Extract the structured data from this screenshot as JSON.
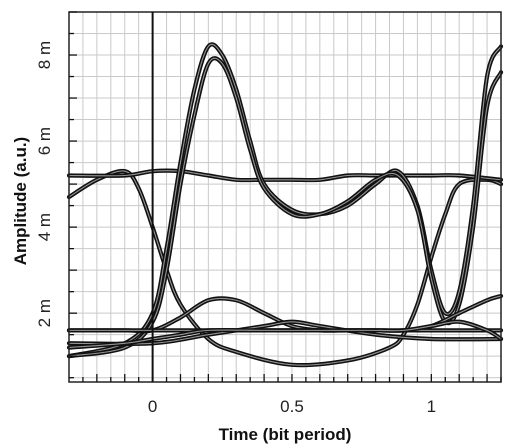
{
  "chart_data": {
    "type": "line",
    "title": "",
    "xlabel": "Time (bit period)",
    "ylabel": "Amplitude (a.u.)",
    "xlim": [
      -0.3,
      1.25
    ],
    "ylim": [
      0.0004,
      0.009
    ],
    "grid": true,
    "x_ticks": [
      {
        "value": 0,
        "label": "0"
      },
      {
        "value": 0.5,
        "label": "0.5"
      },
      {
        "value": 1,
        "label": "1"
      }
    ],
    "y_ticks": [
      {
        "value": 0.002,
        "label": "2 m"
      },
      {
        "value": 0.004,
        "label": "4 m"
      },
      {
        "value": 0.006,
        "label": "6 m"
      },
      {
        "value": 0.008,
        "label": "8 m"
      }
    ],
    "line_color": "#111111",
    "grid_color": "#c9c9c9",
    "series": [
      {
        "x": [
          -0.3,
          -0.2,
          -0.1,
          -0.05,
          0.0,
          0.05,
          0.1,
          0.2,
          0.3,
          0.5,
          0.7,
          0.85,
          0.9,
          0.95,
          1.0,
          1.05,
          1.1,
          1.2,
          1.25
        ],
        "y": [
          0.0047,
          0.0051,
          0.0053,
          0.0049,
          0.004,
          0.003,
          0.0022,
          0.0014,
          0.0011,
          0.0008,
          0.0009,
          0.0012,
          0.0015,
          0.0022,
          0.0033,
          0.0043,
          0.005,
          0.0051,
          0.005
        ]
      },
      {
        "x": [
          -0.3,
          -0.1,
          0.0,
          0.1,
          0.2,
          0.3,
          0.4,
          0.5,
          0.6,
          0.7,
          0.8,
          0.9,
          1.0,
          1.1,
          1.25
        ],
        "y": [
          0.0052,
          0.0052,
          0.0053,
          0.0053,
          0.0052,
          0.0051,
          0.0051,
          0.0051,
          0.0051,
          0.0052,
          0.0052,
          0.0052,
          0.0052,
          0.0052,
          0.0051
        ]
      },
      {
        "x": [
          -0.3,
          -0.1,
          0.0,
          0.05,
          0.1,
          0.15,
          0.2,
          0.25,
          0.3,
          0.35,
          0.4,
          0.5,
          0.6,
          0.7,
          0.8,
          0.88,
          0.95,
          1.0,
          1.05,
          1.1,
          1.15,
          1.2,
          1.25
        ],
        "y": [
          0.001,
          0.0013,
          0.002,
          0.0035,
          0.0055,
          0.0072,
          0.0082,
          0.008,
          0.0072,
          0.006,
          0.005,
          0.0044,
          0.0043,
          0.0045,
          0.005,
          0.0053,
          0.0045,
          0.003,
          0.002,
          0.0025,
          0.0045,
          0.0075,
          0.0082
        ]
      },
      {
        "x": [
          -0.3,
          -0.1,
          0.0,
          0.05,
          0.1,
          0.15,
          0.2,
          0.25,
          0.3,
          0.35,
          0.4,
          0.5,
          0.6,
          0.7,
          0.8,
          0.88,
          0.95,
          1.0,
          1.05,
          1.1,
          1.15,
          1.2,
          1.25
        ],
        "y": [
          0.001,
          0.0012,
          0.0018,
          0.003,
          0.005,
          0.0066,
          0.0078,
          0.0078,
          0.007,
          0.0058,
          0.0049,
          0.0043,
          0.0043,
          0.0046,
          0.0051,
          0.0052,
          0.0044,
          0.0028,
          0.0018,
          0.0022,
          0.004,
          0.0068,
          0.0076
        ]
      },
      {
        "x": [
          -0.3,
          -0.1,
          0.0,
          0.1,
          0.2,
          0.3,
          0.4,
          0.5,
          0.6,
          0.7,
          0.8,
          0.9,
          1.0,
          1.1,
          1.2,
          1.25
        ],
        "y": [
          0.0016,
          0.0016,
          0.0016,
          0.0019,
          0.0023,
          0.0023,
          0.002,
          0.0017,
          0.0016,
          0.0016,
          0.0016,
          0.0016,
          0.0017,
          0.002,
          0.0023,
          0.0024
        ]
      },
      {
        "x": [
          -0.3,
          0.0,
          0.2,
          0.4,
          0.6,
          0.8,
          1.0,
          1.25
        ],
        "y": [
          0.0016,
          0.0016,
          0.0016,
          0.0016,
          0.0016,
          0.0016,
          0.0016,
          0.0016
        ]
      },
      {
        "x": [
          -0.3,
          0.0,
          0.2,
          0.4,
          0.5,
          0.6,
          0.8,
          1.0,
          1.25
        ],
        "y": [
          0.0013,
          0.0013,
          0.0015,
          0.0017,
          0.0018,
          0.0017,
          0.0015,
          0.0014,
          0.0014
        ]
      },
      {
        "x": [
          -0.3,
          -0.1,
          0.0,
          0.1,
          0.2,
          0.4,
          0.6,
          0.8,
          0.9,
          1.0,
          1.1,
          1.2,
          1.25
        ],
        "y": [
          0.0012,
          0.0013,
          0.0014,
          0.0015,
          0.0016,
          0.0016,
          0.0016,
          0.0016,
          0.0016,
          0.0017,
          0.0018,
          0.0016,
          0.0014
        ]
      }
    ]
  }
}
